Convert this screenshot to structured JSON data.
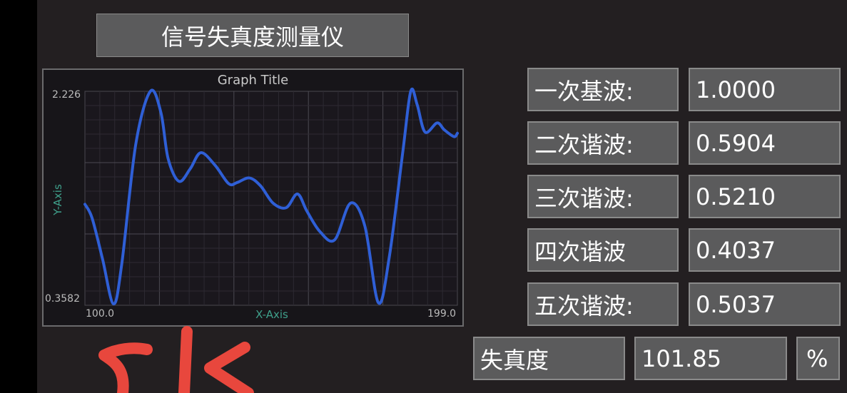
{
  "app": {
    "title": "信号失真度测量仪"
  },
  "graph": {
    "title": "Graph Title",
    "x_axis_label": "X-Axis",
    "y_axis_label": "Y-Axis",
    "x_min_label": "100.0",
    "x_max_label": "199.0",
    "y_min_label": "0.3582",
    "y_max_label": "2.226",
    "line_color": "#2f5fd6",
    "axis_label_color": "#3fa08b"
  },
  "harmonics": [
    {
      "label": "一次基波:",
      "value": "1.0000"
    },
    {
      "label": "二次谐波:",
      "value": "0.5904"
    },
    {
      "label": "三次谐波:",
      "value": "0.5210"
    },
    {
      "label": "四次谐波",
      "value": "0.4037"
    },
    {
      "label": "五次谐波:",
      "value": "0.5037"
    }
  ],
  "distortion": {
    "label": "失真度",
    "value": "101.85",
    "unit": "%"
  },
  "chart_data": {
    "type": "line",
    "title": "Graph Title",
    "xlabel": "X-Axis",
    "ylabel": "Y-Axis",
    "xlim": [
      100.0,
      199.0
    ],
    "ylim": [
      0.3582,
      2.226
    ],
    "grid": true,
    "series": [
      {
        "x": [
          100,
          101.9,
          104.7,
          107.6,
          109.8,
          113.5,
          117.4,
          120.2,
          122.1,
          125.0,
          128.0,
          130.8,
          134.6,
          138.2,
          140.5,
          143.7,
          146.7,
          150.0,
          153.5,
          156.5,
          159.0,
          162.5,
          166.4,
          170.6,
          174.4,
          178.0,
          180.9,
          184.5,
          186.6,
          188.3,
          190.4,
          193.6,
          195.5,
          198.1,
          199.0
        ],
        "y": [
          1.24,
          1.12,
          0.76,
          0.37,
          0.72,
          1.76,
          2.226,
          2.04,
          1.64,
          1.44,
          1.55,
          1.69,
          1.58,
          1.42,
          1.43,
          1.47,
          1.4,
          1.25,
          1.21,
          1.33,
          1.18,
          1.0,
          0.93,
          1.25,
          1.05,
          0.38,
          0.78,
          1.7,
          2.226,
          2.11,
          1.87,
          1.95,
          1.89,
          1.83,
          1.86
        ]
      }
    ]
  }
}
